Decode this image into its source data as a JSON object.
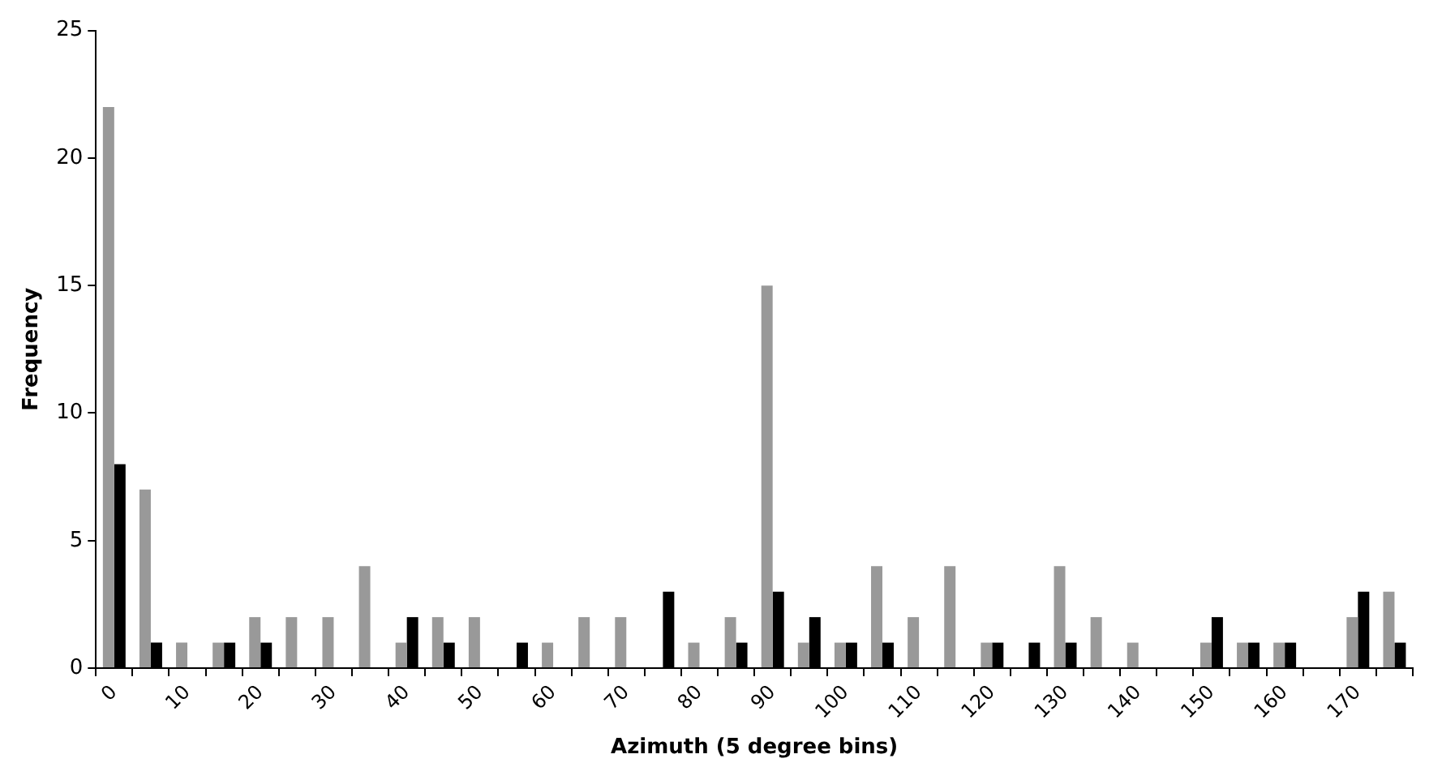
{
  "chart_data": {
    "type": "bar",
    "xlabel": "Azimuth (5 degree bins)",
    "ylabel": "Frequency",
    "categories": [
      "0",
      null,
      "10",
      null,
      "20",
      null,
      "30",
      null,
      "40",
      null,
      "50",
      null,
      "60",
      null,
      "70",
      null,
      "80",
      null,
      "90",
      null,
      "100",
      null,
      "110",
      null,
      "120",
      null,
      "130",
      null,
      "140",
      null,
      "150",
      null,
      "160",
      null,
      "170",
      null
    ],
    "series": [
      {
        "color": "#999999",
        "values": [
          22,
          7,
          1,
          1,
          2,
          2,
          2,
          4,
          1,
          2,
          2,
          0,
          1,
          2,
          2,
          0,
          1,
          2,
          15,
          1,
          1,
          4,
          2,
          4,
          1,
          0,
          4,
          2,
          1,
          0,
          1,
          1,
          1,
          0,
          2,
          3
        ]
      },
      {
        "color": "#000000",
        "values": [
          8,
          1,
          0,
          1,
          1,
          0,
          0,
          0,
          2,
          1,
          0,
          1,
          0,
          0,
          0,
          3,
          0,
          1,
          3,
          2,
          1,
          1,
          0,
          0,
          1,
          1,
          1,
          0,
          0,
          0,
          2,
          1,
          1,
          0,
          3,
          1
        ]
      }
    ],
    "ylim": [
      0,
      25
    ],
    "yticks": [
      0,
      5,
      10,
      15,
      20,
      25
    ],
    "grid": false,
    "legend": false
  }
}
